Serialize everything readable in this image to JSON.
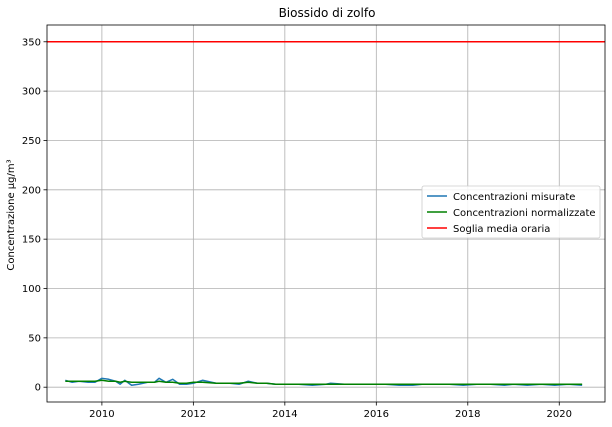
{
  "chart_data": {
    "type": "line",
    "title": "Biossido di zolfo",
    "xlabel": "",
    "ylabel": "Concentrazione μg/m³",
    "xlim": [
      2008.8,
      2021.0
    ],
    "ylim": [
      -15,
      367
    ],
    "x_ticks": [
      2010,
      2012,
      2014,
      2016,
      2018,
      2020
    ],
    "x_tick_labels": [
      "2010",
      "2012",
      "2014",
      "2016",
      "2018",
      "2020"
    ],
    "y_ticks": [
      0,
      50,
      100,
      150,
      200,
      250,
      300,
      350
    ],
    "y_tick_labels": [
      "0",
      "50",
      "100",
      "150",
      "200",
      "250",
      "300",
      "350"
    ],
    "grid": true,
    "legend_position": "center-right",
    "series": [
      {
        "name": "Concentrazioni misurate",
        "color": "#1f77b4",
        "x": [
          2009.2,
          2009.35,
          2009.5,
          2009.7,
          2009.85,
          2010.0,
          2010.15,
          2010.3,
          2010.4,
          2010.5,
          2010.65,
          2010.8,
          2011.0,
          2011.15,
          2011.25,
          2011.4,
          2011.55,
          2011.7,
          2011.85,
          2012.0,
          2012.2,
          2012.5,
          2012.8,
          2013.0,
          2013.2,
          2013.4,
          2013.6,
          2013.8,
          2014.0,
          2014.3,
          2014.6,
          2014.9,
          2015.0,
          2015.3,
          2015.6,
          2015.9,
          2016.2,
          2016.5,
          2016.8,
          2017.0,
          2017.3,
          2017.6,
          2017.9,
          2018.2,
          2018.5,
          2018.8,
          2019.0,
          2019.3,
          2019.6,
          2019.9,
          2020.2,
          2020.5
        ],
        "y": [
          7,
          5,
          6,
          5,
          5,
          9,
          8,
          6,
          3,
          7,
          2,
          3,
          5,
          5,
          9,
          5,
          8,
          3,
          3,
          4,
          7,
          4,
          4,
          3,
          6,
          4,
          4,
          3,
          3,
          3,
          2,
          3,
          4,
          3,
          3,
          3,
          3,
          2,
          2,
          3,
          3,
          3,
          2,
          3,
          3,
          2,
          3,
          2,
          3,
          2,
          3,
          2
        ]
      },
      {
        "name": "Concentrazioni normalizzate",
        "color": "#008000",
        "x": [
          2009.2,
          2009.35,
          2009.5,
          2009.7,
          2009.85,
          2010.0,
          2010.15,
          2010.3,
          2010.4,
          2010.5,
          2010.65,
          2010.8,
          2011.0,
          2011.15,
          2011.25,
          2011.4,
          2011.55,
          2011.7,
          2011.85,
          2012.0,
          2012.2,
          2012.5,
          2012.8,
          2013.0,
          2013.2,
          2013.4,
          2013.6,
          2013.8,
          2014.0,
          2014.3,
          2014.6,
          2014.9,
          2015.0,
          2015.3,
          2015.6,
          2015.9,
          2016.2,
          2016.5,
          2016.8,
          2017.0,
          2017.3,
          2017.6,
          2017.9,
          2018.2,
          2018.5,
          2018.8,
          2019.0,
          2019.3,
          2019.6,
          2019.9,
          2020.2,
          2020.5
        ],
        "y": [
          6,
          6,
          6,
          6,
          6,
          7,
          6,
          6,
          5,
          6,
          5,
          5,
          5,
          5,
          6,
          5,
          5,
          4,
          4,
          5,
          5,
          4,
          4,
          4,
          5,
          4,
          4,
          3,
          3,
          3,
          3,
          3,
          3,
          3,
          3,
          3,
          3,
          3,
          3,
          3,
          3,
          3,
          3,
          3,
          3,
          3,
          3,
          3,
          3,
          3,
          3,
          3
        ]
      },
      {
        "name": "Soglia media oraria",
        "color": "#ff0000",
        "x": [
          2008.8,
          2021.0
        ],
        "y": [
          350,
          350
        ]
      }
    ]
  }
}
